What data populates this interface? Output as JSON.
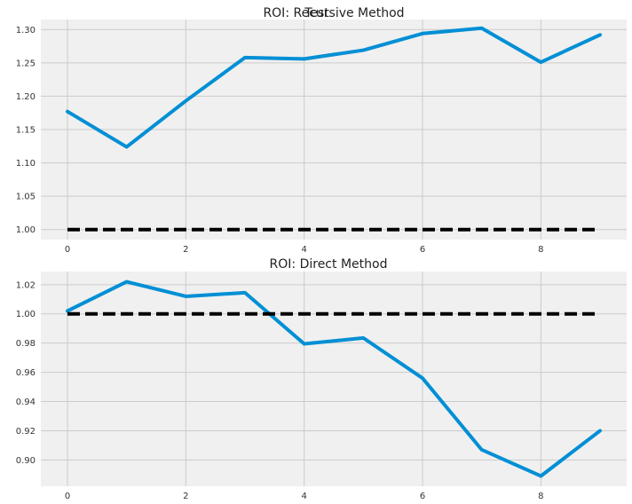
{
  "figure_title": "Test",
  "chart_data": [
    {
      "type": "line",
      "title": "ROI: Recursive Method",
      "xlabel": "",
      "ylabel": "",
      "x": [
        0,
        1,
        2,
        3,
        4,
        5,
        6,
        7,
        8,
        9
      ],
      "series": [
        {
          "values": [
            1.177,
            1.124,
            1.193,
            1.258,
            1.256,
            1.269,
            1.294,
            1.302,
            1.251,
            1.292
          ],
          "color": "#008fd5",
          "style": "solid"
        },
        {
          "values": [
            1.0,
            1.0,
            1.0,
            1.0,
            1.0,
            1.0,
            1.0,
            1.0,
            1.0,
            1.0
          ],
          "color": "#000000",
          "style": "dashed"
        }
      ],
      "xlim": [
        -0.45,
        9.45
      ],
      "ylim": [
        0.985,
        1.315
      ],
      "xticks": [
        0,
        2,
        4,
        6,
        8
      ],
      "yticks": [
        1.0,
        1.05,
        1.1,
        1.15,
        1.2,
        1.25,
        1.3
      ],
      "ytick_labels": [
        "1.00",
        "1.05",
        "1.10",
        "1.15",
        "1.20",
        "1.25",
        "1.30"
      ],
      "grid": true
    },
    {
      "type": "line",
      "title": "ROI: Direct Method",
      "xlabel": "",
      "ylabel": "",
      "x": [
        0,
        1,
        2,
        3,
        4,
        5,
        6,
        7,
        8,
        9
      ],
      "series": [
        {
          "values": [
            1.002,
            1.022,
            1.012,
            1.0145,
            0.9795,
            0.9835,
            0.956,
            0.907,
            0.889,
            0.92
          ],
          "color": "#008fd5",
          "style": "solid"
        },
        {
          "values": [
            1.0,
            1.0,
            1.0,
            1.0,
            1.0,
            1.0,
            1.0,
            1.0,
            1.0,
            1.0
          ],
          "color": "#000000",
          "style": "dashed"
        }
      ],
      "xlim": [
        -0.45,
        9.45
      ],
      "ylim": [
        0.882,
        1.029
      ],
      "xticks": [
        0,
        2,
        4,
        6,
        8
      ],
      "yticks": [
        0.9,
        0.92,
        0.94,
        0.96,
        0.98,
        1.0,
        1.02
      ],
      "ytick_labels": [
        "0.90",
        "0.92",
        "0.94",
        "0.96",
        "0.98",
        "1.00",
        "1.02"
      ],
      "grid": true
    }
  ],
  "colors": {
    "plot_background": "#f0f0f0",
    "grid": "#cbcbcb",
    "figure_background": "#ffffff"
  }
}
